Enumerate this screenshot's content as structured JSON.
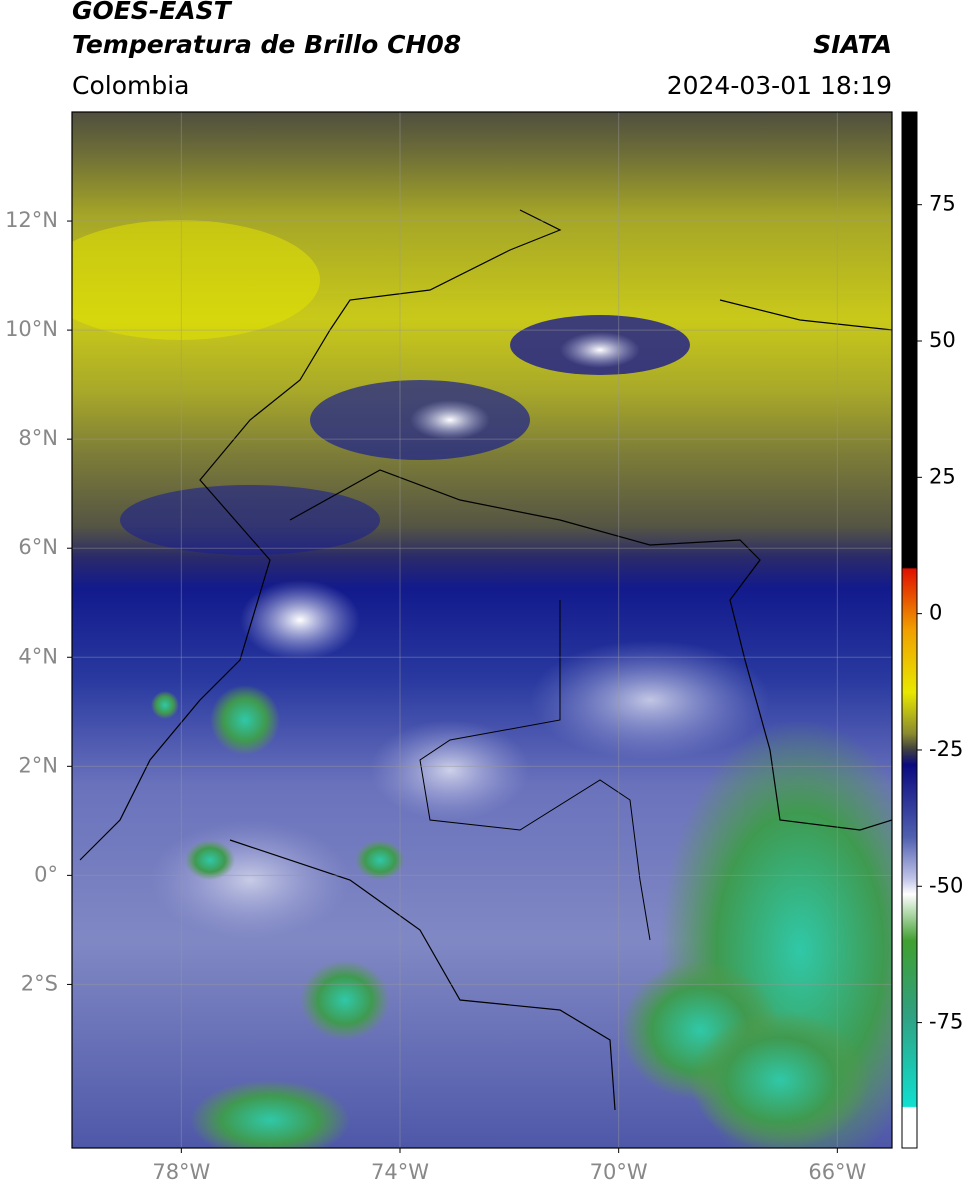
{
  "header": {
    "title": "GOES-EAST",
    "subtitle": "Temperatura de Brillo CH08",
    "org": "SIATA",
    "region": "Colombia",
    "timestamp": "2024-03-01 18:19"
  },
  "map": {
    "lon_range": [
      -80,
      -65
    ],
    "lat_range": [
      -5,
      14
    ],
    "lat_ticks": [
      {
        "value": 12,
        "label": "12°N"
      },
      {
        "value": 10,
        "label": "10°N"
      },
      {
        "value": 8,
        "label": "8°N"
      },
      {
        "value": 6,
        "label": "6°N"
      },
      {
        "value": 4,
        "label": "4°N"
      },
      {
        "value": 2,
        "label": "2°N"
      },
      {
        "value": 0,
        "label": "0°"
      },
      {
        "value": -2,
        "label": "2°S"
      }
    ],
    "lon_ticks": [
      {
        "value": -78,
        "label": "78°W"
      },
      {
        "value": -74,
        "label": "74°W"
      },
      {
        "value": -70,
        "label": "70°W"
      },
      {
        "value": -66,
        "label": "66°W"
      }
    ]
  },
  "colorbar": {
    "range": [
      -98,
      92
    ],
    "ticks": [
      75,
      50,
      25,
      0,
      -25,
      -50,
      -75
    ]
  }
}
